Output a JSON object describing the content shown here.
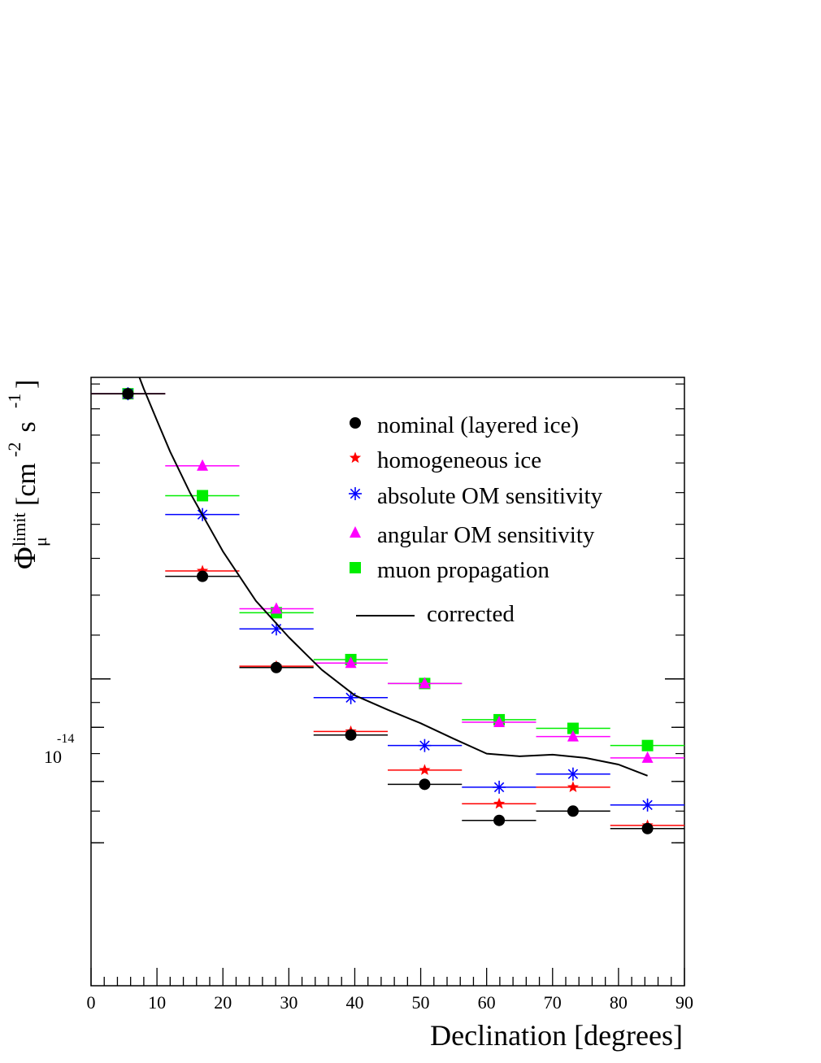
{
  "chart_data": {
    "type": "scatter",
    "xlabel": "Declination [degrees]",
    "ylabel_parts": {
      "phi": "Φ",
      "sup": "limit",
      "sub": "μ",
      "unit_open": "[cm",
      "exp1": "-2",
      "unit_mid": " s",
      "exp2": "-1",
      "unit_close": "]"
    },
    "xlim": [
      0,
      90
    ],
    "ylim_log10": [
      -14.29,
      -13.715
    ],
    "x_ticks": [
      "0",
      "10",
      "20",
      "30",
      "40",
      "50",
      "60",
      "70",
      "80",
      "90"
    ],
    "y_tick_label": {
      "base": "10",
      "exp": "-14"
    },
    "log_y": true,
    "legend_position": "top-right",
    "bins": [
      [
        0,
        11.25
      ],
      [
        11.25,
        22.5
      ],
      [
        22.5,
        33.75
      ],
      [
        33.75,
        45
      ],
      [
        45,
        56.25
      ],
      [
        56.25,
        67.5
      ],
      [
        67.5,
        78.75
      ],
      [
        78.75,
        90
      ]
    ],
    "x_centers": [
      5.6,
      16.9,
      28.1,
      39.4,
      50.6,
      61.9,
      73.1,
      84.4
    ],
    "series": [
      {
        "name": "nominal (layered ice)",
        "marker": "circle",
        "color": "#000000",
        "y": [
          1.86e-14,
          1.25e-14,
          1.025e-14,
          8.85e-15,
          7.95e-15,
          7.35e-15,
          7.5e-15,
          7.22e-15
        ]
      },
      {
        "name": "homogeneous ice",
        "marker": "star",
        "color": "#ff0000",
        "y": [
          1.86e-14,
          1.265e-14,
          1.028e-14,
          8.92e-15,
          8.2e-15,
          7.62e-15,
          7.9e-15,
          7.27e-15
        ]
      },
      {
        "name": "absolute OM sensitivity",
        "marker": "asterisk",
        "color": "#0000ff",
        "y": [
          1.86e-14,
          1.43e-14,
          1.115e-14,
          9.6e-15,
          8.65e-15,
          7.9e-15,
          8.13e-15,
          7.6e-15
        ]
      },
      {
        "name": "angular OM sensitivity",
        "marker": "triangle",
        "color": "#ff00ff",
        "y": [
          1.86e-14,
          1.59e-14,
          1.165e-14,
          1.035e-14,
          9.9e-15,
          9.1e-15,
          8.82e-15,
          8.42e-15
        ]
      },
      {
        "name": "muon propagation",
        "marker": "square",
        "color": "#00ee00",
        "y": [
          1.86e-14,
          1.49e-14,
          1.155e-14,
          1.043e-14,
          9.9e-15,
          9.15e-15,
          8.98e-15,
          8.65e-15
        ]
      }
    ],
    "corrected_curve": {
      "name": "corrected",
      "color": "#000000",
      "x": [
        5.7,
        8,
        10,
        12,
        15,
        20,
        25,
        30,
        35,
        40,
        45,
        50,
        55,
        60,
        65,
        70,
        75,
        80,
        84.4
      ],
      "y": [
        2.05e-14,
        1.88e-14,
        1.755e-14,
        1.64e-14,
        1.5e-14,
        1.32e-14,
        1.185e-14,
        1.095e-14,
        1.02e-14,
        9.65e-15,
        9.35e-15,
        9.08e-15,
        8.78e-15,
        8.5e-15,
        8.45e-15,
        8.48e-15,
        8.42e-15,
        8.3e-15,
        8.1e-15
      ]
    }
  }
}
